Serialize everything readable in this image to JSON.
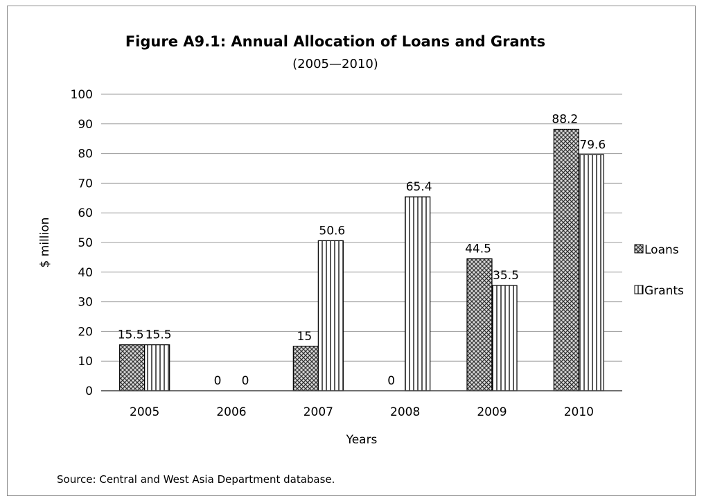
{
  "chart_data": {
    "type": "bar",
    "title": "Figure A9.1: Annual Allocation of Loans and Grants",
    "subtitle": "(2005—2010)",
    "xlabel": "Years",
    "ylabel": "$ million",
    "ylim": [
      0,
      100
    ],
    "yticks": [
      0,
      10,
      20,
      30,
      40,
      50,
      60,
      70,
      80,
      90,
      100
    ],
    "grid": true,
    "legend_position": "right",
    "categories": [
      "2005",
      "2006",
      "2007",
      "2008",
      "2009",
      "2010"
    ],
    "series": [
      {
        "name": "Loans",
        "values": [
          15.5,
          0,
          15,
          0,
          44.5,
          88.2
        ],
        "labels": [
          "15.5",
          "0",
          "15",
          "0",
          "44.5",
          "88.2"
        ],
        "pattern": "crosshatch"
      },
      {
        "name": "Grants",
        "values": [
          15.5,
          0,
          50.6,
          65.4,
          35.5,
          79.6
        ],
        "labels": [
          "15.5",
          "0",
          "50.6",
          "65.4",
          "35.5",
          "79.6"
        ],
        "pattern": "vertical-stripes"
      }
    ]
  },
  "source_note": "Source: Central and West Asia Department database."
}
